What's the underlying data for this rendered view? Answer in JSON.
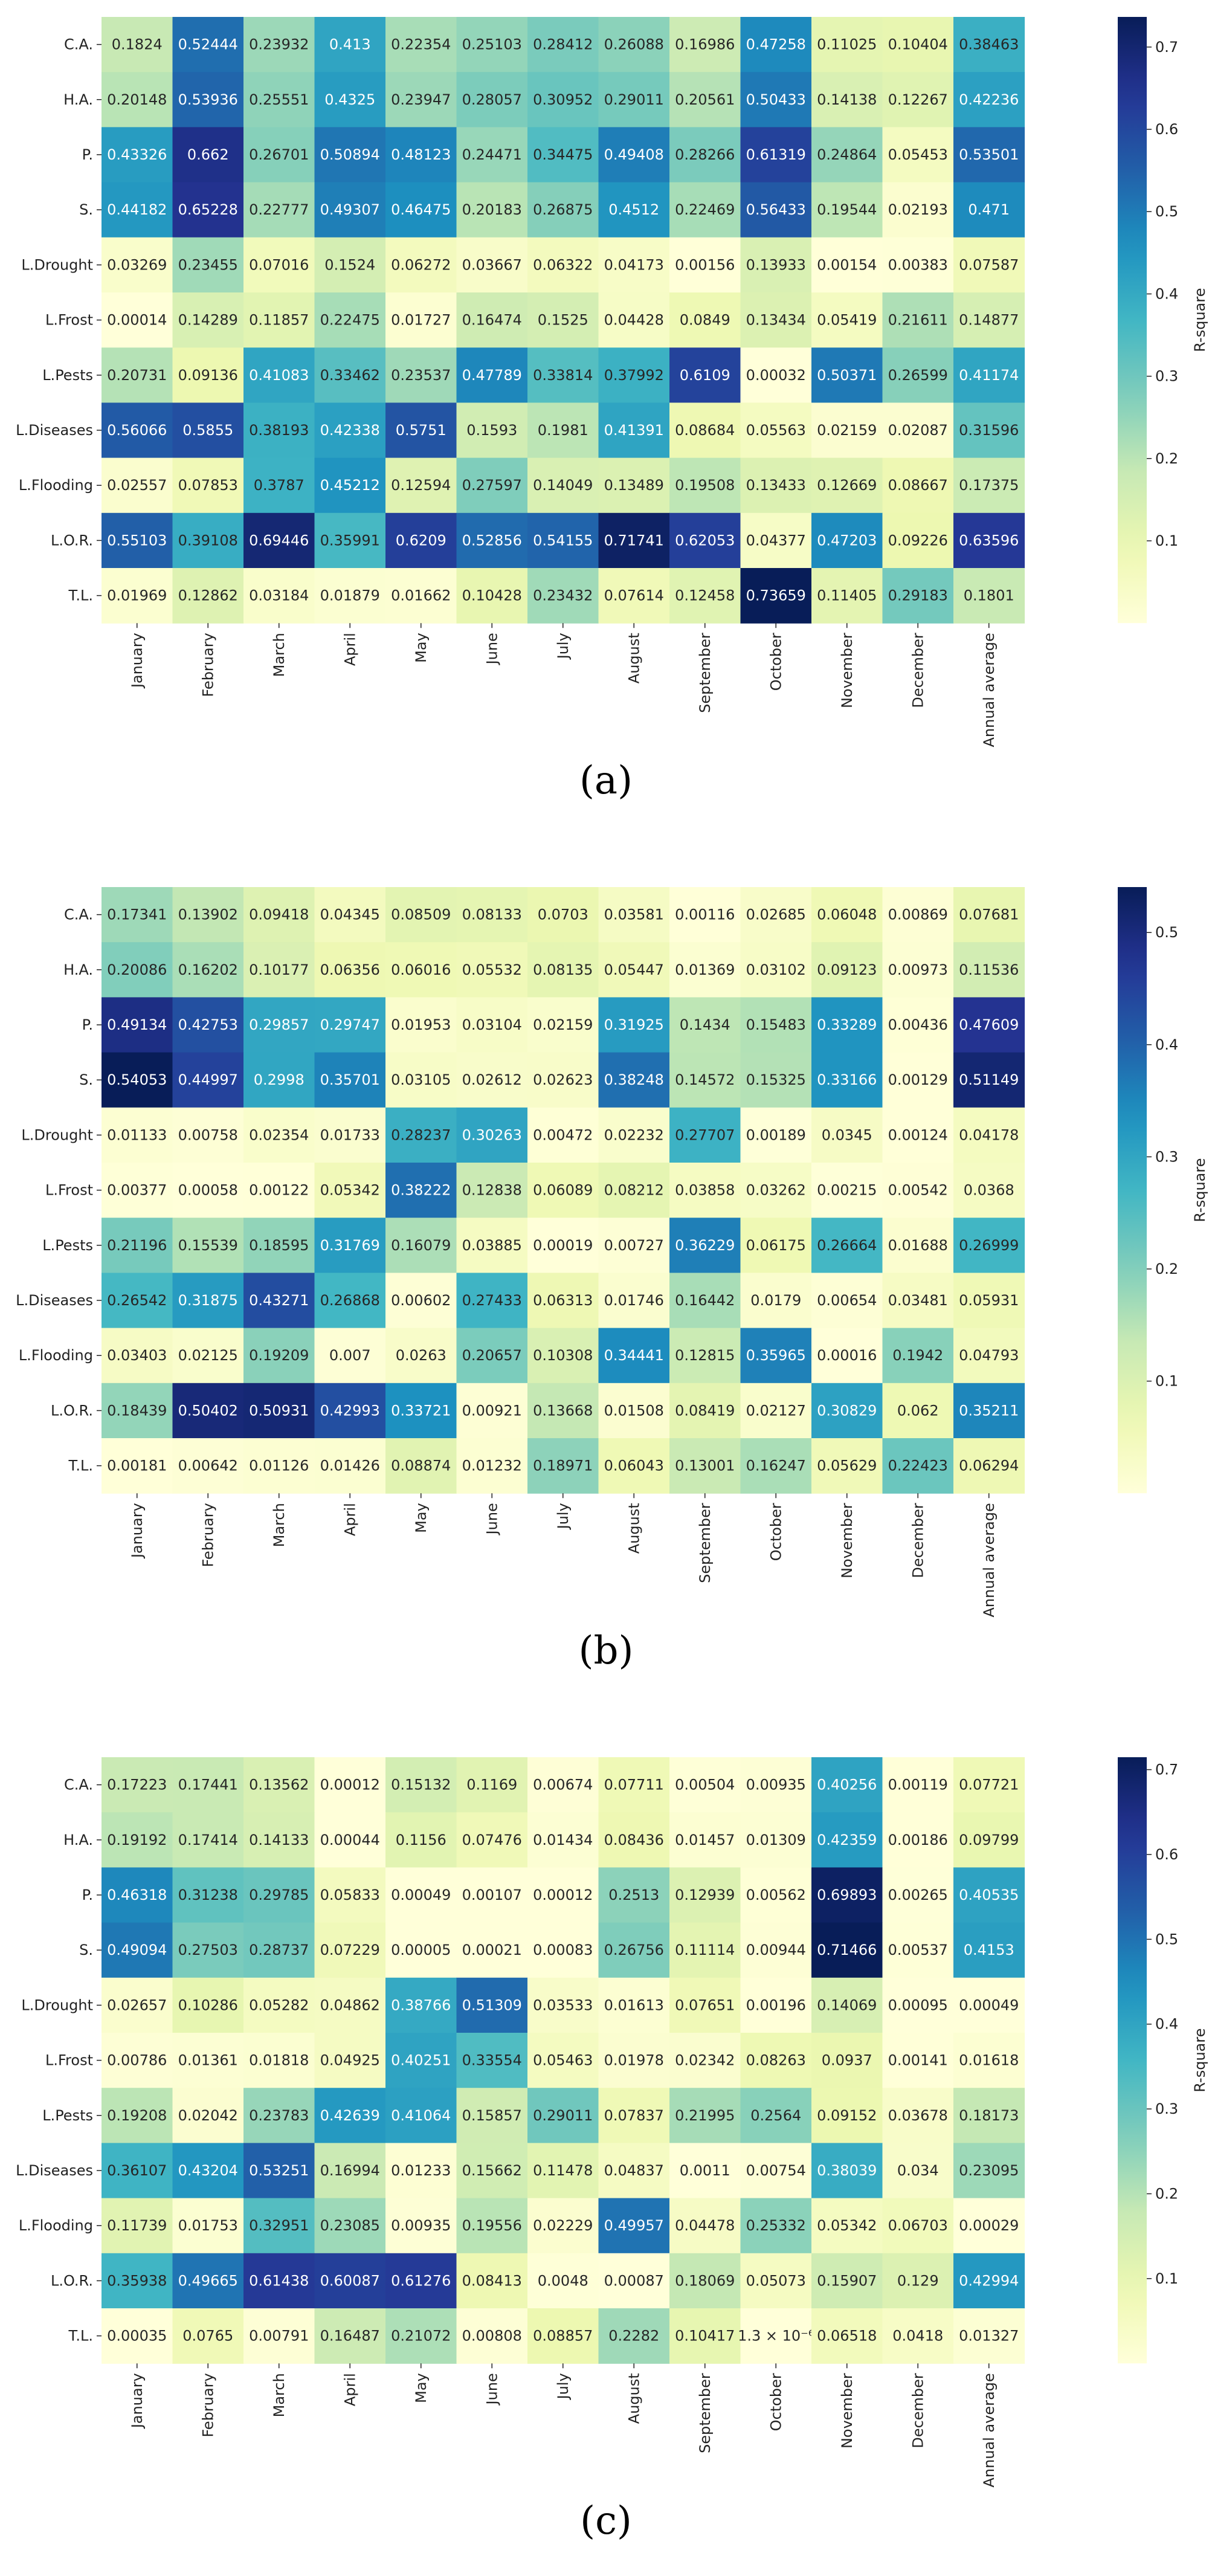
{
  "chart_data": [
    {
      "type": "heatmap",
      "caption": "(a)",
      "colorbar_label": "R-square",
      "colorbar_ticks": [
        0.1,
        0.2,
        0.3,
        0.4,
        0.5,
        0.6,
        0.7
      ],
      "vmin": 0.0,
      "vmax": 0.73659,
      "rows": [
        "C.A.",
        "H.A.",
        "P.",
        "S.",
        "L.Drought",
        "L.Frost",
        "L.Pests",
        "L.Diseases",
        "L.Flooding",
        "L.O.R.",
        "T.L."
      ],
      "columns": [
        "January",
        "February",
        "March",
        "April",
        "May",
        "June",
        "July",
        "August",
        "September",
        "October",
        "November",
        "December",
        "Annual average"
      ],
      "values": [
        [
          "0.1824",
          "0.52444",
          "0.23932",
          "0.413",
          "0.22354",
          "0.25103",
          "0.28412",
          "0.26088",
          "0.16986",
          "0.47258",
          "0.11025",
          "0.10404",
          "0.38463"
        ],
        [
          "0.20148",
          "0.53936",
          "0.25551",
          "0.4325",
          "0.23947",
          "0.28057",
          "0.30952",
          "0.29011",
          "0.20561",
          "0.50433",
          "0.14138",
          "0.12267",
          "0.42236"
        ],
        [
          "0.43326",
          "0.662",
          "0.26701",
          "0.50894",
          "0.48123",
          "0.24471",
          "0.34475",
          "0.49408",
          "0.28266",
          "0.61319",
          "0.24864",
          "0.05453",
          "0.53501"
        ],
        [
          "0.44182",
          "0.65228",
          "0.22777",
          "0.49307",
          "0.46475",
          "0.20183",
          "0.26875",
          "0.4512",
          "0.22469",
          "0.56433",
          "0.19544",
          "0.02193",
          "0.471"
        ],
        [
          "0.03269",
          "0.23455",
          "0.07016",
          "0.1524",
          "0.06272",
          "0.03667",
          "0.06322",
          "0.04173",
          "0.00156",
          "0.13933",
          "0.00154",
          "0.00383",
          "0.07587"
        ],
        [
          "0.00014",
          "0.14289",
          "0.11857",
          "0.22475",
          "0.01727",
          "0.16474",
          "0.1525",
          "0.04428",
          "0.0849",
          "0.13434",
          "0.05419",
          "0.21611",
          "0.14877"
        ],
        [
          "0.20731",
          "0.09136",
          "0.41083",
          "0.33462",
          "0.23537",
          "0.47789",
          "0.33814",
          "0.37992",
          "0.6109",
          "0.00032",
          "0.50371",
          "0.26599",
          "0.41174"
        ],
        [
          "0.56066",
          "0.5855",
          "0.38193",
          "0.42338",
          "0.5751",
          "0.1593",
          "0.1981",
          "0.41391",
          "0.08684",
          "0.05563",
          "0.02159",
          "0.02087",
          "0.31596"
        ],
        [
          "0.02557",
          "0.07853",
          "0.3787",
          "0.45212",
          "0.12594",
          "0.27597",
          "0.14049",
          "0.13489",
          "0.19508",
          "0.13433",
          "0.12669",
          "0.08667",
          "0.17375"
        ],
        [
          "0.55103",
          "0.39108",
          "0.69446",
          "0.35991",
          "0.6209",
          "0.52856",
          "0.54155",
          "0.71741",
          "0.62053",
          "0.04377",
          "0.47203",
          "0.09226",
          "0.63596"
        ],
        [
          "0.01969",
          "0.12862",
          "0.03184",
          "0.01879",
          "0.01662",
          "0.10428",
          "0.23432",
          "0.07614",
          "0.12458",
          "0.73659",
          "0.11405",
          "0.29183",
          "0.1801"
        ]
      ]
    },
    {
      "type": "heatmap",
      "caption": "(b)",
      "colorbar_label": "R-square",
      "colorbar_ticks": [
        0.1,
        0.2,
        0.3,
        0.4,
        0.5
      ],
      "vmin": 0.0,
      "vmax": 0.54053,
      "rows": [
        "C.A.",
        "H.A.",
        "P.",
        "S.",
        "L.Drought",
        "L.Frost",
        "L.Pests",
        "L.Diseases",
        "L.Flooding",
        "L.O.R.",
        "T.L."
      ],
      "columns": [
        "January",
        "February",
        "March",
        "April",
        "May",
        "June",
        "July",
        "August",
        "September",
        "October",
        "November",
        "December",
        "Annual average"
      ],
      "values": [
        [
          "0.17341",
          "0.13902",
          "0.09418",
          "0.04345",
          "0.08509",
          "0.08133",
          "0.0703",
          "0.03581",
          "0.00116",
          "0.02685",
          "0.06048",
          "0.00869",
          "0.07681"
        ],
        [
          "0.20086",
          "0.16202",
          "0.10177",
          "0.06356",
          "0.06016",
          "0.05532",
          "0.08135",
          "0.05447",
          "0.01369",
          "0.03102",
          "0.09123",
          "0.00973",
          "0.11536"
        ],
        [
          "0.49134",
          "0.42753",
          "0.29857",
          "0.29747",
          "0.01953",
          "0.03104",
          "0.02159",
          "0.31925",
          "0.1434",
          "0.15483",
          "0.33289",
          "0.00436",
          "0.47609"
        ],
        [
          "0.54053",
          "0.44997",
          "0.2998",
          "0.35701",
          "0.03105",
          "0.02612",
          "0.02623",
          "0.38248",
          "0.14572",
          "0.15325",
          "0.33166",
          "0.00129",
          "0.51149"
        ],
        [
          "0.01133",
          "0.00758",
          "0.02354",
          "0.01733",
          "0.28237",
          "0.30263",
          "0.00472",
          "0.02232",
          "0.27707",
          "0.00189",
          "0.0345",
          "0.00124",
          "0.04178"
        ],
        [
          "0.00377",
          "0.00058",
          "0.00122",
          "0.05342",
          "0.38222",
          "0.12838",
          "0.06089",
          "0.08212",
          "0.03858",
          "0.03262",
          "0.00215",
          "0.00542",
          "0.0368"
        ],
        [
          "0.21196",
          "0.15539",
          "0.18595",
          "0.31769",
          "0.16079",
          "0.03885",
          "0.00019",
          "0.00727",
          "0.36229",
          "0.06175",
          "0.26664",
          "0.01688",
          "0.26999"
        ],
        [
          "0.26542",
          "0.31875",
          "0.43271",
          "0.26868",
          "0.00602",
          "0.27433",
          "0.06313",
          "0.01746",
          "0.16442",
          "0.0179",
          "0.00654",
          "0.03481",
          "0.05931"
        ],
        [
          "0.03403",
          "0.02125",
          "0.19209",
          "0.007",
          "0.0263",
          "0.20657",
          "0.10308",
          "0.34441",
          "0.12815",
          "0.35965",
          "0.00016",
          "0.1942",
          "0.04793"
        ],
        [
          "0.18439",
          "0.50402",
          "0.50931",
          "0.42993",
          "0.33721",
          "0.00921",
          "0.13668",
          "0.01508",
          "0.08419",
          "0.02127",
          "0.30829",
          "0.062",
          "0.35211"
        ],
        [
          "0.00181",
          "0.00642",
          "0.01126",
          "0.01426",
          "0.08874",
          "0.01232",
          "0.18971",
          "0.06043",
          "0.13001",
          "0.16247",
          "0.05629",
          "0.22423",
          "0.06294"
        ]
      ]
    },
    {
      "type": "heatmap",
      "caption": "(c)",
      "colorbar_label": "R-square",
      "colorbar_ticks": [
        0.1,
        0.2,
        0.3,
        0.4,
        0.5,
        0.6,
        0.7
      ],
      "vmin": 0.0,
      "vmax": 0.71466,
      "rows": [
        "C.A.",
        "H.A.",
        "P.",
        "S.",
        "L.Drought",
        "L.Frost",
        "L.Pests",
        "L.Diseases",
        "L.Flooding",
        "L.O.R.",
        "T.L."
      ],
      "columns": [
        "January",
        "February",
        "March",
        "April",
        "May",
        "June",
        "July",
        "August",
        "September",
        "October",
        "November",
        "December",
        "Annual average"
      ],
      "values": [
        [
          "0.17223",
          "0.17441",
          "0.13562",
          "0.00012",
          "0.15132",
          "0.1169",
          "0.00674",
          "0.07711",
          "0.00504",
          "0.00935",
          "0.40256",
          "0.00119",
          "0.07721"
        ],
        [
          "0.19192",
          "0.17414",
          "0.14133",
          "0.00044",
          "0.1156",
          "0.07476",
          "0.01434",
          "0.08436",
          "0.01457",
          "0.01309",
          "0.42359",
          "0.00186",
          "0.09799"
        ],
        [
          "0.46318",
          "0.31238",
          "0.29785",
          "0.05833",
          "0.00049",
          "0.00107",
          "0.00012",
          "0.2513",
          "0.12939",
          "0.00562",
          "0.69893",
          "0.00265",
          "0.40535"
        ],
        [
          "0.49094",
          "0.27503",
          "0.28737",
          "0.07229",
          "0.00005",
          "0.00021",
          "0.00083",
          "0.26756",
          "0.11114",
          "0.00944",
          "0.71466",
          "0.00537",
          "0.4153"
        ],
        [
          "0.02657",
          "0.10286",
          "0.05282",
          "0.04862",
          "0.38766",
          "0.51309",
          "0.03533",
          "0.01613",
          "0.07651",
          "0.00196",
          "0.14069",
          "0.00095",
          "0.00049"
        ],
        [
          "0.00786",
          "0.01361",
          "0.01818",
          "0.04925",
          "0.40251",
          "0.33554",
          "0.05463",
          "0.01978",
          "0.02342",
          "0.08263",
          "0.0937",
          "0.00141",
          "0.01618"
        ],
        [
          "0.19208",
          "0.02042",
          "0.23783",
          "0.42639",
          "0.41064",
          "0.15857",
          "0.29011",
          "0.07837",
          "0.21995",
          "0.2564",
          "0.09152",
          "0.03678",
          "0.18173"
        ],
        [
          "0.36107",
          "0.43204",
          "0.53251",
          "0.16994",
          "0.01233",
          "0.15662",
          "0.11478",
          "0.04837",
          "0.0011",
          "0.00754",
          "0.38039",
          "0.034",
          "0.23095"
        ],
        [
          "0.11739",
          "0.01753",
          "0.32951",
          "0.23085",
          "0.00935",
          "0.19556",
          "0.02229",
          "0.49957",
          "0.04478",
          "0.25332",
          "0.05342",
          "0.06703",
          "0.00029"
        ],
        [
          "0.35938",
          "0.49665",
          "0.61438",
          "0.60087",
          "0.61276",
          "0.08413",
          "0.0048",
          "0.00087",
          "0.18069",
          "0.05073",
          "0.15907",
          "0.129",
          "0.42994"
        ],
        [
          "0.00035",
          "0.0765",
          "0.00791",
          "0.16487",
          "0.21072",
          "0.00808",
          "0.08857",
          "0.2282",
          "0.10417",
          "1.3 × 10⁻⁶",
          "0.06518",
          "0.0418",
          "0.01327"
        ]
      ]
    }
  ]
}
